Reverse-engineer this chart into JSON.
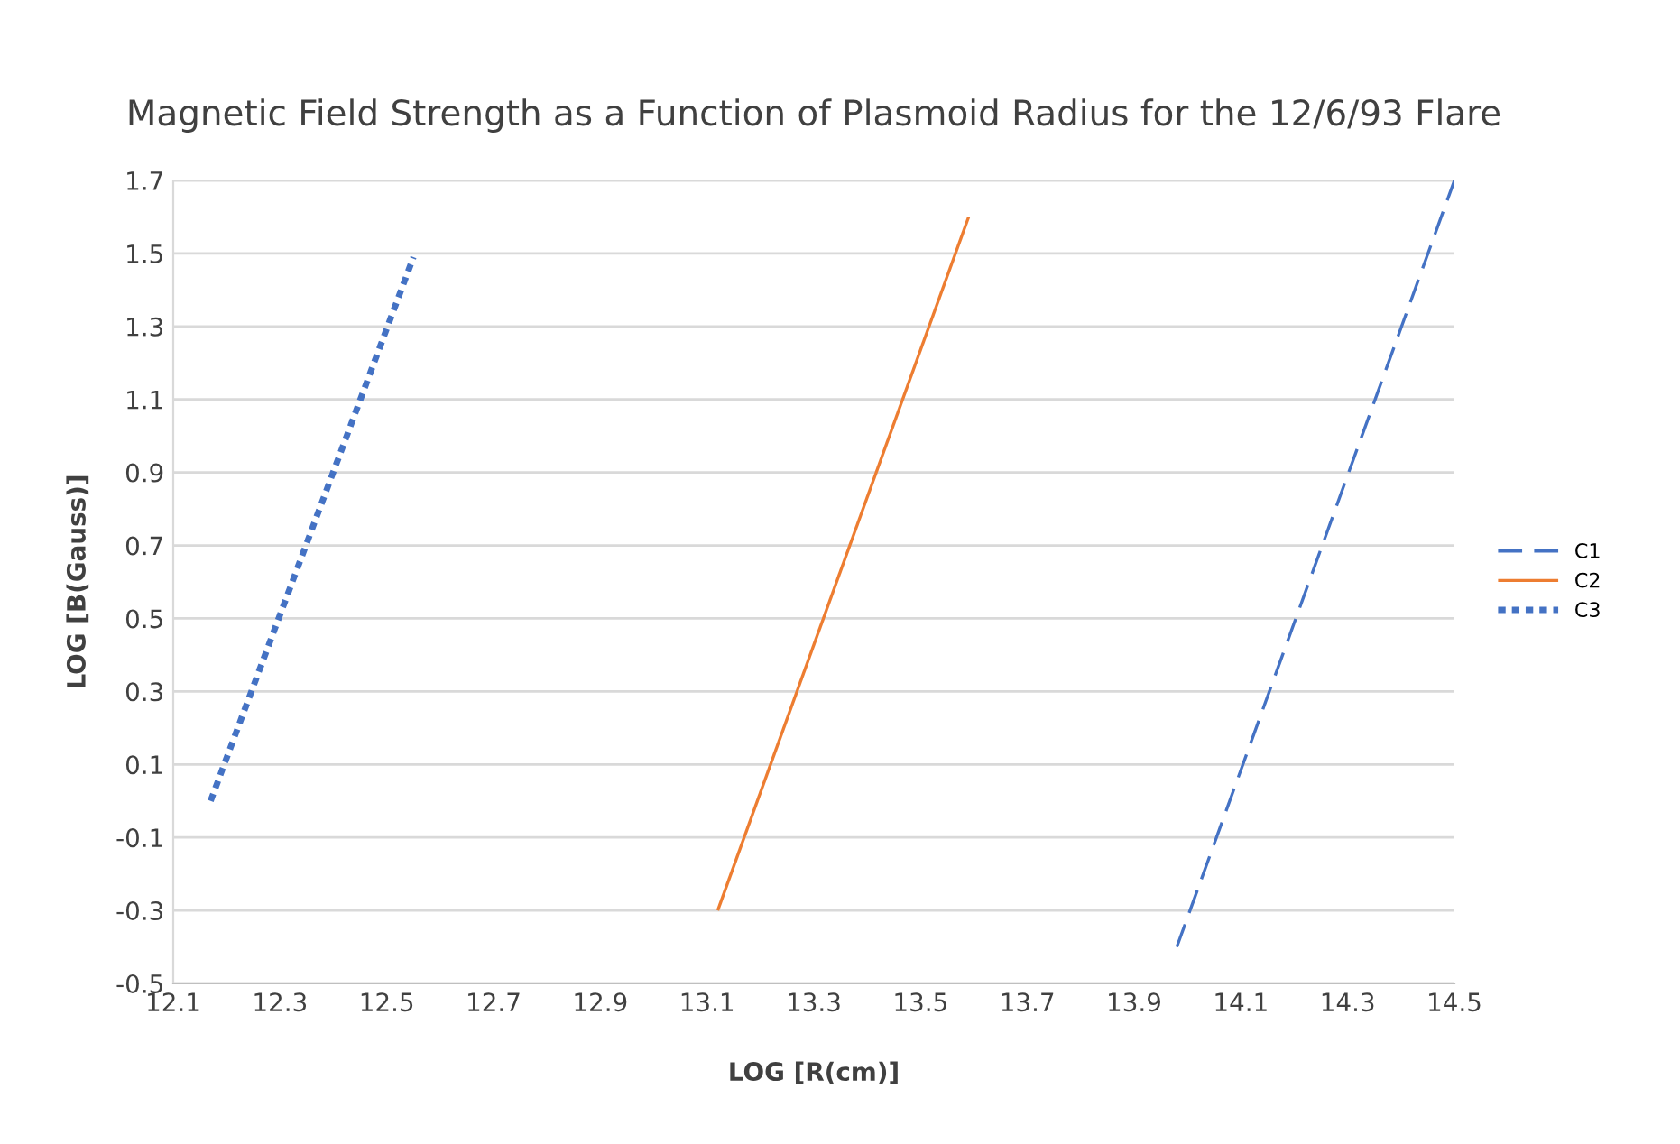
{
  "chart_data": {
    "type": "line",
    "title": "Magnetic Field Strength as a Function of Plasmoid Radius for the 12/6/93 Flare",
    "xlabel": "LOG [R(cm)]",
    "ylabel": "LOG [B(Gauss)]",
    "xlim": [
      12.1,
      14.5
    ],
    "xticks": [
      12.1,
      12.3,
      12.5,
      12.7,
      12.9,
      13.1,
      13.3,
      13.5,
      13.7,
      13.9,
      14.1,
      14.3,
      14.5
    ],
    "ylim": [
      -0.5,
      1.7
    ],
    "yticks": [
      -0.5,
      -0.3,
      -0.1,
      0.1,
      0.3,
      0.5,
      0.7,
      0.9,
      1.1,
      1.3,
      1.5,
      1.7
    ],
    "grid": "y",
    "legend": "right",
    "marker": "none",
    "series": [
      {
        "name": "C1",
        "color": "#4472c4",
        "line_style": "dashed",
        "x": [
          13.98,
          14.5
        ],
        "values": [
          -0.4,
          1.7
        ]
      },
      {
        "name": "C2",
        "color": "#ed7d31",
        "line_style": "solid",
        "x": [
          13.12,
          13.59
        ],
        "values": [
          -0.3,
          1.6
        ]
      },
      {
        "name": "C3",
        "color": "#4472c4",
        "line_style": "dotted",
        "x": [
          12.17,
          12.55
        ],
        "values": [
          0.0,
          1.49
        ]
      }
    ]
  }
}
